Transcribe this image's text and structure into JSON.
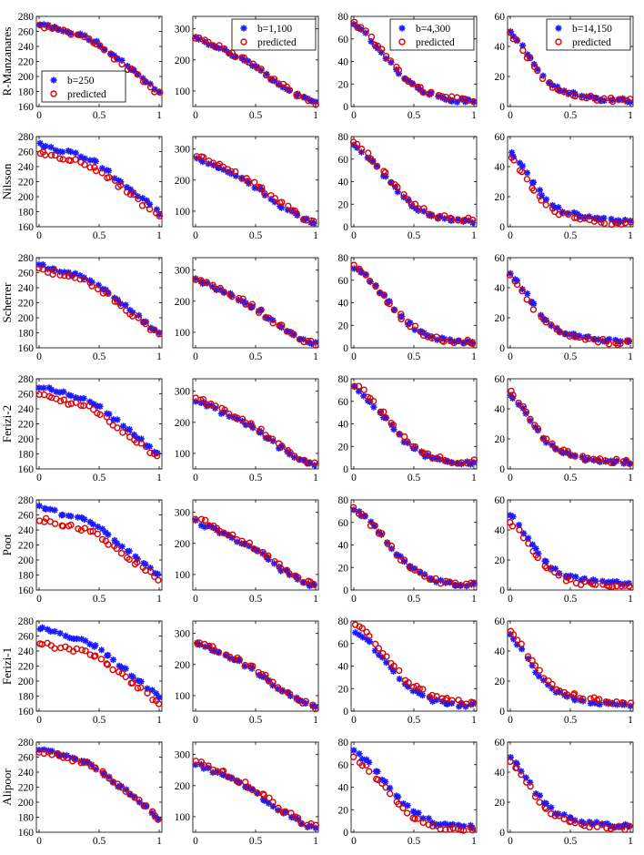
{
  "figure": {
    "row_labels": [
      "R-Manzanares",
      "Nilsson",
      "Scherrer",
      "Ferizi-2",
      "Poot",
      "Ferizi-1",
      "Alipoor"
    ],
    "column_b_labels": [
      "b=250",
      "b=1,100",
      "b=4,300",
      "b=14,150"
    ],
    "legend_observed_label": "",
    "legend_predicted_label": "predicted",
    "observed_color": "#1a1aff",
    "predicted_color": "#e00000",
    "observed_marker": "asterisk",
    "predicted_marker": "circle"
  },
  "chart_data": {
    "type": "scatter",
    "layout": "7x4 grid of scatter panels",
    "x_ticks": [
      "0",
      "0.5",
      "1"
    ],
    "xlim": [
      0,
      1
    ],
    "columns": [
      {
        "b": "b=250",
        "ylim": [
          160,
          280
        ],
        "y_ticks": [
          "160",
          "180",
          "200",
          "220",
          "240",
          "260",
          "280"
        ]
      },
      {
        "b": "b=1,100",
        "ylim": [
          50,
          340
        ],
        "y_ticks": [
          "100",
          "200",
          "300"
        ]
      },
      {
        "b": "b=4,300",
        "ylim": [
          0,
          80
        ],
        "y_ticks": [
          "0",
          "20",
          "40",
          "60",
          "80"
        ]
      },
      {
        "b": "b=14,150",
        "ylim": [
          0,
          60
        ],
        "y_ticks": [
          "0",
          "20",
          "40",
          "60"
        ]
      }
    ],
    "observed_curves": [
      [
        [
          0,
          270
        ],
        [
          0.1,
          266
        ],
        [
          0.2,
          261
        ],
        [
          0.3,
          257
        ],
        [
          0.4,
          252
        ],
        [
          0.5,
          243
        ],
        [
          0.6,
          230
        ],
        [
          0.7,
          218
        ],
        [
          0.8,
          205
        ],
        [
          0.9,
          192
        ],
        [
          1,
          178
        ]
      ],
      [
        [
          0,
          270
        ],
        [
          0.1,
          255
        ],
        [
          0.2,
          236
        ],
        [
          0.3,
          220
        ],
        [
          0.4,
          200
        ],
        [
          0.5,
          178
        ],
        [
          0.6,
          150
        ],
        [
          0.7,
          120
        ],
        [
          0.8,
          98
        ],
        [
          0.9,
          75
        ],
        [
          1,
          62
        ]
      ],
      [
        [
          0,
          72
        ],
        [
          0.1,
          64
        ],
        [
          0.2,
          52
        ],
        [
          0.3,
          40
        ],
        [
          0.4,
          27
        ],
        [
          0.5,
          18
        ],
        [
          0.6,
          12
        ],
        [
          0.7,
          8
        ],
        [
          0.8,
          6
        ],
        [
          0.9,
          5
        ],
        [
          1,
          5
        ]
      ],
      [
        [
          0,
          50
        ],
        [
          0.1,
          40
        ],
        [
          0.2,
          28
        ],
        [
          0.3,
          18
        ],
        [
          0.4,
          12
        ],
        [
          0.5,
          9
        ],
        [
          0.6,
          7
        ],
        [
          0.7,
          6
        ],
        [
          0.8,
          5
        ],
        [
          0.9,
          4.5
        ],
        [
          1,
          4
        ]
      ]
    ],
    "predicted_offsets": {
      "R-Manzanares": [
        -2,
        3,
        2,
        -1
      ],
      "Nilsson": [
        -12,
        10,
        3,
        -4
      ],
      "Scherrer": [
        -5,
        0,
        0,
        -2
      ],
      "Ferizi-2": [
        -12,
        8,
        3,
        1
      ],
      "Poot": [
        -15,
        10,
        0,
        -4
      ],
      "Ferizi-1": [
        -20,
        5,
        6,
        3
      ],
      "Alipoor": [
        -1,
        12,
        -6,
        -3
      ]
    },
    "points_per_series": 30
  }
}
